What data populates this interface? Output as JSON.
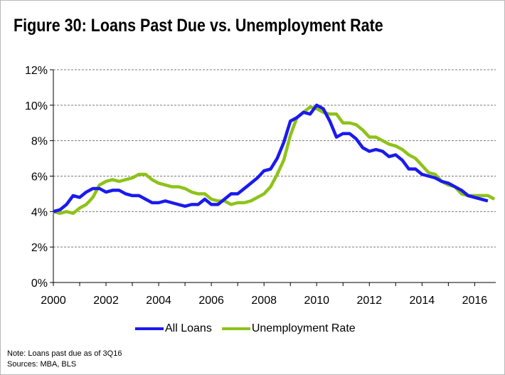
{
  "title": "Figure 30: Loans Past Due vs. Unemployment Rate",
  "note": "Note: Loans past due as of 3Q16",
  "sources": "Sources: MBA, BLS",
  "chart_data": {
    "type": "line",
    "title": "Figure 30: Loans Past Due vs. Unemployment Rate",
    "xlabel": "",
    "ylabel": "",
    "xlim": [
      2000,
      2016.8
    ],
    "ylim": [
      0,
      12
    ],
    "x_ticks": [
      "2000",
      "2002",
      "2004",
      "2006",
      "2008",
      "2010",
      "2012",
      "2014",
      "2016"
    ],
    "y_ticks": [
      "0%",
      "2%",
      "4%",
      "6%",
      "8%",
      "10%",
      "12%"
    ],
    "grid": "horizontal dashed",
    "legend": "bottom",
    "series": [
      {
        "name": "All Loans",
        "color": "#1a1aee",
        "x": [
          2000.0,
          2000.25,
          2000.5,
          2000.75,
          2001.0,
          2001.25,
          2001.5,
          2001.75,
          2002.0,
          2002.25,
          2002.5,
          2002.75,
          2003.0,
          2003.25,
          2003.5,
          2003.75,
          2004.0,
          2004.25,
          2004.5,
          2004.75,
          2005.0,
          2005.25,
          2005.5,
          2005.75,
          2006.0,
          2006.25,
          2006.5,
          2006.75,
          2007.0,
          2007.25,
          2007.5,
          2007.75,
          2008.0,
          2008.25,
          2008.5,
          2008.75,
          2009.0,
          2009.25,
          2009.5,
          2009.75,
          2010.0,
          2010.25,
          2010.5,
          2010.75,
          2011.0,
          2011.25,
          2011.5,
          2011.75,
          2012.0,
          2012.25,
          2012.5,
          2012.75,
          2013.0,
          2013.25,
          2013.5,
          2013.75,
          2014.0,
          2014.25,
          2014.5,
          2014.75,
          2015.0,
          2015.25,
          2015.5,
          2015.75,
          2016.0,
          2016.25,
          2016.5
        ],
        "values": [
          4.0,
          4.1,
          4.4,
          4.9,
          4.8,
          5.1,
          5.3,
          5.3,
          5.1,
          5.2,
          5.2,
          5.0,
          4.9,
          4.9,
          4.7,
          4.5,
          4.5,
          4.6,
          4.5,
          4.4,
          4.3,
          4.4,
          4.4,
          4.7,
          4.4,
          4.4,
          4.7,
          5.0,
          5.0,
          5.3,
          5.6,
          5.9,
          6.3,
          6.4,
          7.0,
          7.9,
          9.1,
          9.3,
          9.6,
          9.5,
          10.0,
          9.8,
          9.1,
          8.2,
          8.4,
          8.4,
          8.1,
          7.6,
          7.4,
          7.5,
          7.4,
          7.1,
          7.2,
          6.9,
          6.4,
          6.4,
          6.1,
          6.0,
          5.9,
          5.7,
          5.6,
          5.4,
          5.2,
          4.9,
          4.8,
          4.7,
          4.6
        ]
      },
      {
        "name": "Unemployment Rate",
        "color": "#8ec21a",
        "x": [
          2000.0,
          2000.25,
          2000.5,
          2000.75,
          2001.0,
          2001.25,
          2001.5,
          2001.75,
          2002.0,
          2002.25,
          2002.5,
          2002.75,
          2003.0,
          2003.25,
          2003.5,
          2003.75,
          2004.0,
          2004.25,
          2004.5,
          2004.75,
          2005.0,
          2005.25,
          2005.5,
          2005.75,
          2006.0,
          2006.25,
          2006.5,
          2006.75,
          2007.0,
          2007.25,
          2007.5,
          2007.75,
          2008.0,
          2008.25,
          2008.5,
          2008.75,
          2009.0,
          2009.25,
          2009.5,
          2009.75,
          2010.0,
          2010.25,
          2010.5,
          2010.75,
          2011.0,
          2011.25,
          2011.5,
          2011.75,
          2012.0,
          2012.25,
          2012.5,
          2012.75,
          2013.0,
          2013.25,
          2013.5,
          2013.75,
          2014.0,
          2014.25,
          2014.5,
          2014.75,
          2015.0,
          2015.25,
          2015.5,
          2015.75,
          2016.0,
          2016.25,
          2016.5,
          2016.75
        ],
        "values": [
          4.0,
          3.9,
          4.0,
          3.9,
          4.2,
          4.4,
          4.8,
          5.5,
          5.7,
          5.8,
          5.7,
          5.8,
          5.9,
          6.1,
          6.1,
          5.8,
          5.6,
          5.5,
          5.4,
          5.4,
          5.3,
          5.1,
          5.0,
          5.0,
          4.7,
          4.6,
          4.6,
          4.4,
          4.5,
          4.5,
          4.6,
          4.8,
          5.0,
          5.4,
          6.1,
          6.9,
          8.3,
          9.3,
          9.6,
          9.9,
          9.8,
          9.6,
          9.5,
          9.5,
          9.0,
          9.0,
          8.9,
          8.6,
          8.2,
          8.2,
          8.0,
          7.8,
          7.7,
          7.5,
          7.2,
          7.0,
          6.6,
          6.2,
          6.1,
          5.7,
          5.5,
          5.4,
          5.0,
          4.9,
          4.9,
          4.9,
          4.9,
          4.7
        ]
      }
    ]
  }
}
